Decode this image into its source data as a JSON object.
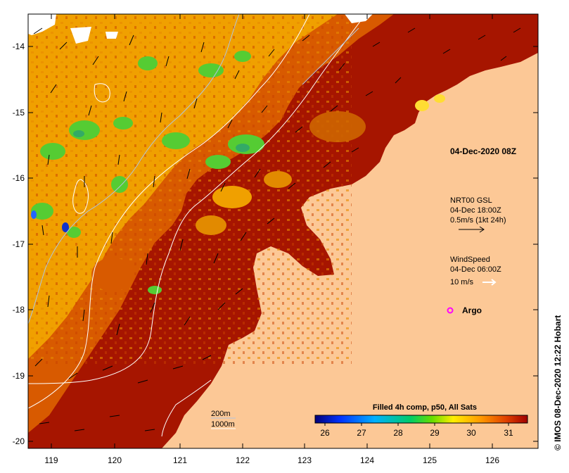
{
  "map": {
    "lon_ticks": [
      "119",
      "120",
      "121",
      "122",
      "123",
      "124",
      "125",
      "126"
    ],
    "lat_ticks": [
      "-14",
      "-15",
      "-16",
      "-17",
      "-18",
      "-19",
      "-20"
    ],
    "timestamp_label": "04-Dec-2020 08Z",
    "current_legend": {
      "line1": "NRT00 GSL",
      "line2": "04-Dec 18:00Z",
      "line3": "0.5m/s (1kt 24h)"
    },
    "wind_legend": {
      "line1": "WindSpeed",
      "line2": "04-Dec 06:00Z",
      "line3": "10 m/s"
    },
    "argo_label": "Argo",
    "bathy_legend": {
      "line1": "200m",
      "line2": "1000m"
    },
    "colorbar": {
      "title": "Filled 4h comp, p50, All Sats",
      "ticks": [
        "26",
        "27",
        "28",
        "29",
        "30",
        "31"
      ],
      "min": 26,
      "max": 31.6
    },
    "credit": "© IMOS 08-Dec-2020 12:22 Hobart",
    "colors": {
      "land": "#fcc896",
      "sst_hot": "#a61500",
      "sst_warm": "#d85a00",
      "sst_mid": "#f0a000",
      "sst_cool": "#55cc33",
      "argo": "#ff00ff"
    }
  }
}
